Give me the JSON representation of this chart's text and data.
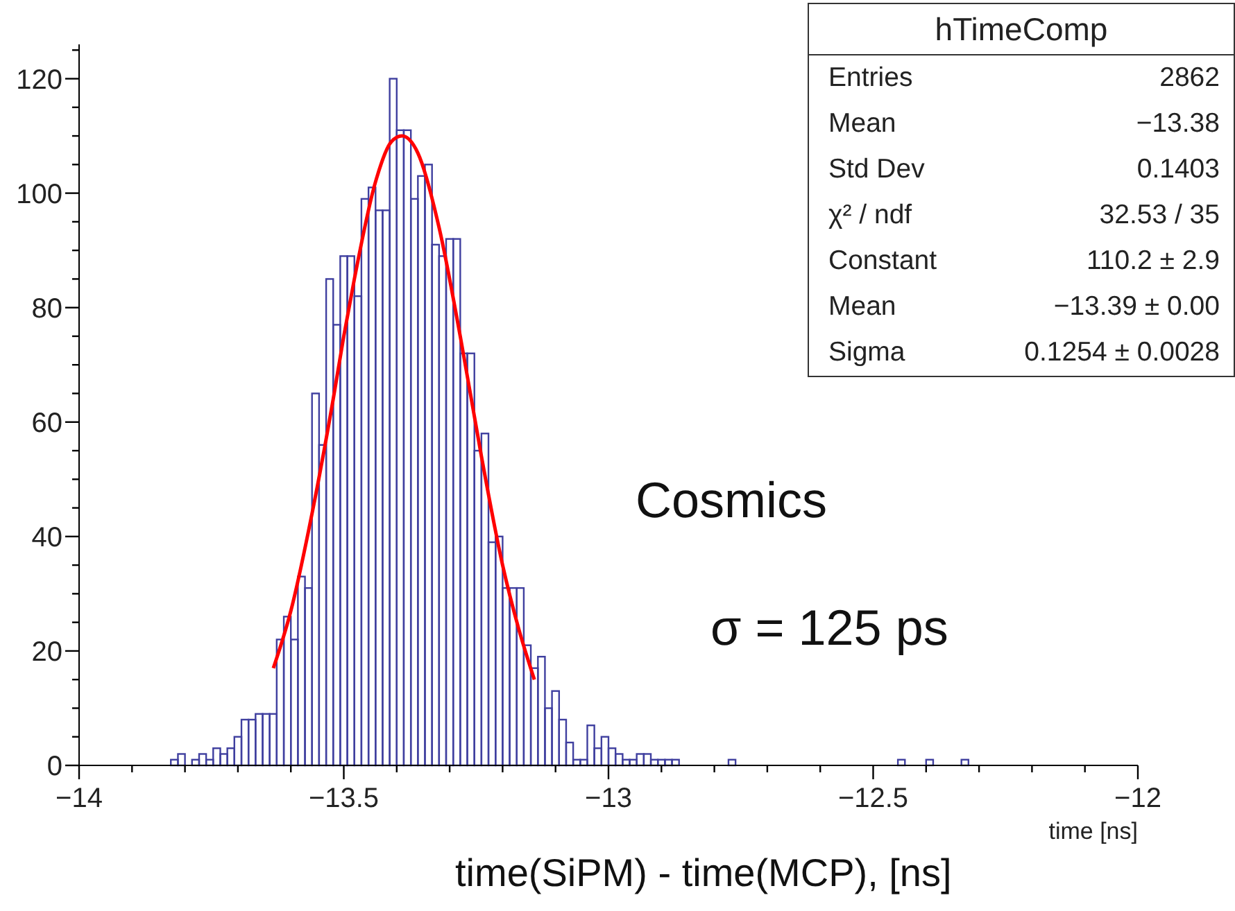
{
  "chart_data": {
    "type": "histogram",
    "color": "#3f3f9f",
    "bins": [
      -13.8267,
      -13.8133,
      -13.8,
      -13.7867,
      -13.7733,
      -13.76,
      -13.7467,
      -13.7333,
      -13.72,
      -13.7067,
      -13.6933,
      -13.68,
      -13.6667,
      -13.6533,
      -13.64,
      -13.6267,
      -13.6133,
      -13.6,
      -13.5867,
      -13.5733,
      -13.56,
      -13.5467,
      -13.5333,
      -13.52,
      -13.5067,
      -13.4933,
      -13.48,
      -13.4667,
      -13.4533,
      -13.44,
      -13.4267,
      -13.4133,
      -13.4,
      -13.3867,
      -13.3733,
      -13.36,
      -13.3467,
      -13.3333,
      -13.32,
      -13.3067,
      -13.2933,
      -13.28,
      -13.2667,
      -13.2533,
      -13.24,
      -13.2267,
      -13.2133,
      -13.2,
      -13.1867,
      -13.1733,
      -13.16,
      -13.1467,
      -13.1333,
      -13.12,
      -13.1067,
      -13.0933,
      -13.08,
      -13.0667,
      -13.0533,
      -13.04,
      -13.0267,
      -13.0133,
      -13,
      -12.9867,
      -12.9733,
      -12.96,
      -12.9467,
      -12.9333,
      -12.92,
      -12.9067,
      -12.8933,
      -12.88,
      -12.8667,
      -12.8533,
      -12.84,
      -12.8267,
      -12.8133,
      -12.8,
      -12.7867,
      -12.7733,
      -12.76,
      -12.7467,
      -12.7333,
      -12.72,
      -12.7067,
      -12.6933,
      -12.68,
      -12.6667,
      -12.6533,
      -12.64,
      -12.6267,
      -12.6133,
      -12.6,
      -12.5867,
      -12.5733,
      -12.56,
      -12.5467,
      -12.5333,
      -12.52,
      -12.5067,
      -12.4933,
      -12.48,
      -12.4667,
      -12.4533,
      -12.44,
      -12.4267,
      -12.4133,
      -12.4,
      -12.3867,
      -12.3733,
      -12.36,
      -12.3467,
      -12.3333,
      -12.32
    ],
    "values": [
      1,
      2,
      0,
      1,
      2,
      1,
      3,
      2,
      3,
      5,
      8,
      8,
      9,
      9,
      9,
      22,
      26,
      22,
      33,
      31,
      65,
      56,
      85,
      77,
      89,
      89,
      82,
      99,
      101,
      97,
      97,
      120,
      111,
      111,
      99,
      103,
      105,
      91,
      89,
      92,
      92,
      72,
      72,
      55,
      58,
      39,
      40,
      31,
      31,
      31,
      21,
      17,
      19,
      10,
      13,
      8,
      4,
      1,
      1,
      7,
      3,
      5,
      3,
      2,
      1,
      1,
      2,
      2,
      1,
      1,
      1,
      1,
      0,
      0,
      0,
      0,
      0,
      0,
      0,
      1,
      0,
      0,
      0,
      0,
      0,
      0,
      0,
      0,
      0,
      0,
      0,
      0,
      0,
      0,
      0,
      0,
      0,
      0,
      0,
      0,
      0,
      0,
      0,
      1,
      0,
      0,
      0,
      1,
      0,
      0,
      0,
      0,
      1
    ],
    "series": [
      {
        "type": "line",
        "color": "#ff0000",
        "x": [
          -13.633,
          -13.6,
          -13.56,
          -13.52,
          -13.5,
          -13.48,
          -13.44,
          -13.41,
          -13.39,
          -13.36,
          -13.32,
          -13.28,
          -13.24,
          -13.2,
          -13.17,
          -13.14
        ],
        "values": [
          17,
          27,
          44,
          64,
          75,
          85,
          102,
          109,
          110,
          107,
          94,
          75,
          54,
          35,
          24,
          15
        ]
      }
    ],
    "xlabel": "time [ns]",
    "xlim": [
      -14,
      -12
    ],
    "xticks": [
      -14,
      {
        "value": -13.9,
        "label": null
      },
      {
        "value": -13.8,
        "label": null
      },
      {
        "value": -13.7,
        "label": null
      },
      {
        "value": -13.6,
        "label": null
      },
      -13.5,
      {
        "value": -13.4,
        "label": null
      },
      {
        "value": -13.3,
        "label": null
      },
      {
        "value": -13.2,
        "label": null
      },
      {
        "value": -13.1,
        "label": null
      },
      -13,
      {
        "value": -12.9,
        "label": null
      },
      {
        "value": -12.8,
        "label": null
      },
      {
        "value": -12.7,
        "label": null
      },
      {
        "value": -12.6,
        "label": null
      },
      -12.5,
      {
        "value": -12.4,
        "label": null
      },
      {
        "value": -12.3,
        "label": null
      },
      {
        "value": -12.2,
        "label": null
      },
      {
        "value": -12.1,
        "label": null
      },
      -12
    ],
    "ylim": [
      0,
      126
    ],
    "yticks": [
      0,
      {
        "value": 5,
        "label": null
      },
      {
        "value": 10,
        "label": null
      },
      {
        "value": 15,
        "label": null
      },
      20,
      {
        "value": 25,
        "label": null
      },
      {
        "value": 30,
        "label": null
      },
      {
        "value": 35,
        "label": null
      },
      40,
      {
        "value": 45,
        "label": null
      },
      {
        "value": 50,
        "label": null
      },
      {
        "value": 55,
        "label": null
      },
      60,
      {
        "value": 65,
        "label": null
      },
      {
        "value": 70,
        "label": null
      },
      {
        "value": 75,
        "label": null
      },
      80,
      {
        "value": 85,
        "label": null
      },
      {
        "value": 90,
        "label": null
      },
      {
        "value": 95,
        "label": null
      },
      100,
      {
        "value": 105,
        "label": null
      },
      {
        "value": 110,
        "label": null
      },
      {
        "value": 115,
        "label": null
      },
      120,
      {
        "value": 125,
        "label": null
      }
    ],
    "annotations": [
      "Cosmics",
      "σ = 125 ps",
      "time(SiPM) - time(MCP), [ns]",
      "hTimeComp",
      "Entries",
      "2862",
      "Mean",
      "−13.38",
      "Std Dev",
      "0.1403",
      "χ² / ndf",
      "32.53 / 35",
      "Constant",
      "110.2 ± 2.9",
      "Mean",
      "−13.39 ± 0.00",
      "Sigma",
      "0.1254 ± 0.0028"
    ]
  }
}
